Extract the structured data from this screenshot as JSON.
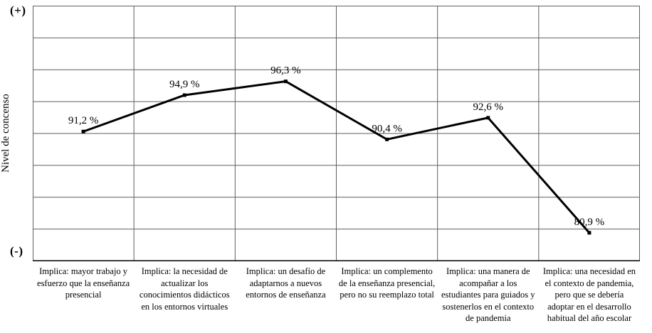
{
  "chart_data": {
    "type": "line",
    "title": "",
    "xlabel": "",
    "ylabel": "Nivel de concenso",
    "y_axis_top_label": "(+)",
    "y_axis_bottom_label": "(-)",
    "grid": true,
    "legend": false,
    "line_color": "#000000",
    "grid_color": "#5f5f5f",
    "axis_color": "#000000",
    "ylim": [
      78,
      104
    ],
    "h_gridline_count": 9,
    "categories": [
      "Implica: mayor trabajo y esfuerzo que la enseñanza presencial",
      "Implica: la necesidad de actualizar los conocimientos didácticos en los entornos virtuales",
      "Implica: un desafío de adaptarnos a nuevos entornos de enseñanza",
      "Implica: un complemento de la enseñanza presencial, pero no su reemplazo total",
      "Implica: una manera de acompañar a los estudiantes para guiados y sostenerlos en el contexto de pandemia",
      "Implica: una necesidad en el contexto de pandemia, pero que se debería adoptar en el desarrollo habitual del año escolar"
    ],
    "values": [
      91.2,
      94.9,
      96.3,
      90.4,
      92.6,
      80.9
    ],
    "value_labels": [
      "91,2 %",
      "94,9 %",
      "96,3 %",
      "90,4 %",
      "92,6 %",
      "80,9 %"
    ]
  }
}
